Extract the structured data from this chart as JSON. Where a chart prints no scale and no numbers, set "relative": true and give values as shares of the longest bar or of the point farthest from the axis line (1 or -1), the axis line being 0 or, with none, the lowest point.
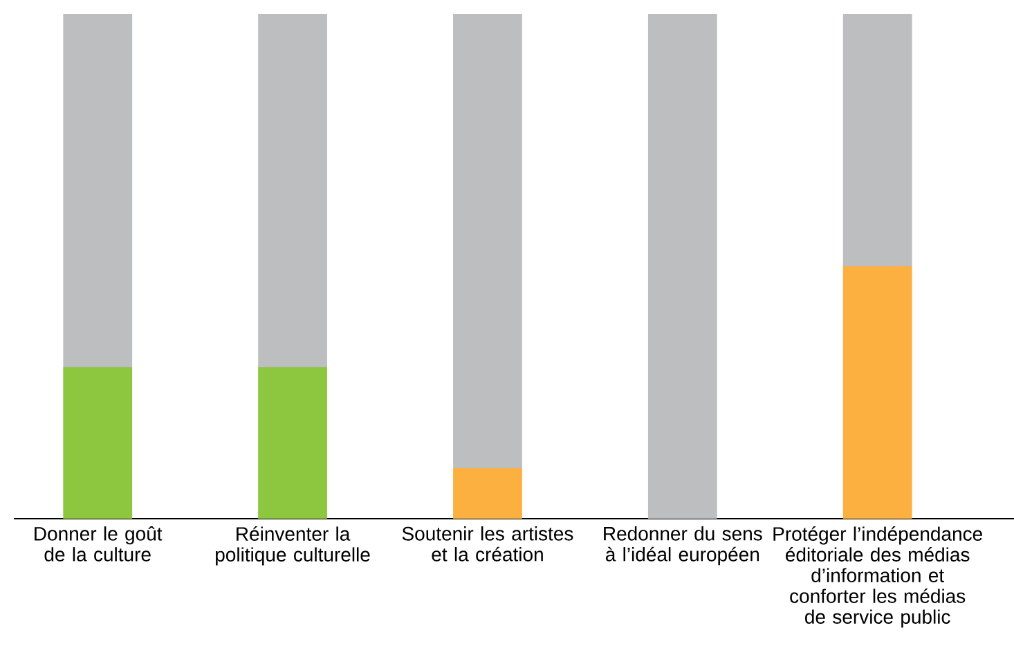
{
  "chart_data": {
    "type": "bar",
    "stacked": true,
    "relative": true,
    "categories": [
      "Donner le goût de la culture",
      "Réinventer la politique culturelle",
      "Soutenir les artistes et la création",
      "Redonner du sens à l’idéal européen",
      "Protéger l’indépendance éditoriale des médias d’information et conforter les médias de service public"
    ],
    "series": [
      {
        "colors": [
          "#8dc63f",
          "#8dc63f",
          "#fbb040",
          null,
          "#fbb040"
        ],
        "values": [
          0.3,
          0.3,
          0.1,
          0,
          0.5
        ]
      },
      {
        "color": "#bcbec0",
        "values": [
          0.7,
          0.7,
          0.9,
          1,
          0.5
        ]
      }
    ]
  }
}
